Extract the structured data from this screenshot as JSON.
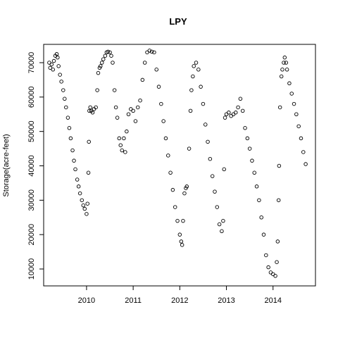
{
  "chart_data": {
    "type": "scatter",
    "title": "LPY",
    "y_label": "Storage(acre-feet)",
    "xlim": [
      2009.08,
      2014.91
    ],
    "xticks": [
      2010,
      2011,
      2012,
      2013,
      2014
    ],
    "ylim": [
      5085,
      75325
    ],
    "yticks": [
      10000,
      20000,
      30000,
      40000,
      50000,
      60000,
      70000
    ],
    "color": "#000000",
    "x": [
      2009.2,
      2009.22,
      2009.25,
      2009.28,
      2009.3,
      2009.33,
      2009.36,
      2009.38,
      2009.4,
      2009.43,
      2009.46,
      2009.5,
      2009.53,
      2009.56,
      2009.6,
      2009.63,
      2009.66,
      2009.7,
      2009.73,
      2009.76,
      2009.8,
      2009.83,
      2009.86,
      2009.9,
      2009.93,
      2009.96,
      2010.0,
      2010.02,
      2010.04,
      2010.05,
      2010.06,
      2010.08,
      2010.1,
      2010.13,
      2010.16,
      2010.2,
      2010.23,
      2010.25,
      2010.28,
      2010.3,
      2010.33,
      2010.36,
      2010.4,
      2010.43,
      2010.46,
      2010.5,
      2010.53,
      2010.56,
      2010.6,
      2010.63,
      2010.66,
      2010.7,
      2010.73,
      2010.76,
      2010.8,
      2010.83,
      2010.86,
      2010.9,
      2010.95,
      2011.0,
      2011.05,
      2011.1,
      2011.15,
      2011.2,
      2011.25,
      2011.3,
      2011.35,
      2011.4,
      2011.45,
      2011.5,
      2011.55,
      2011.6,
      2011.65,
      2011.7,
      2011.75,
      2011.8,
      2011.85,
      2011.9,
      2011.95,
      2012.0,
      2012.03,
      2012.05,
      2012.07,
      2012.1,
      2012.13,
      2012.15,
      2012.2,
      2012.23,
      2012.25,
      2012.28,
      2012.3,
      2012.35,
      2012.4,
      2012.45,
      2012.5,
      2012.55,
      2012.6,
      2012.65,
      2012.7,
      2012.75,
      2012.8,
      2012.85,
      2012.9,
      2012.93,
      2012.95,
      2012.97,
      2013.0,
      2013.05,
      2013.1,
      2013.15,
      2013.2,
      2013.25,
      2013.3,
      2013.35,
      2013.4,
      2013.45,
      2013.5,
      2013.55,
      2013.6,
      2013.65,
      2013.7,
      2013.75,
      2013.8,
      2013.85,
      2013.9,
      2013.95,
      2014.0,
      2014.05,
      2014.08,
      2014.1,
      2014.12,
      2014.13,
      2014.15,
      2014.18,
      2014.2,
      2014.23,
      2014.25,
      2014.28,
      2014.3,
      2014.35,
      2014.4,
      2014.45,
      2014.5,
      2014.55,
      2014.6,
      2014.65,
      2014.7
    ],
    "values": [
      70000,
      68500,
      69500,
      68000,
      70500,
      72000,
      72500,
      71500,
      69000,
      66500,
      64500,
      62000,
      59500,
      57000,
      54000,
      51000,
      48000,
      44500,
      41500,
      39000,
      36000,
      34000,
      32000,
      30000,
      28500,
      27500,
      26000,
      29000,
      38000,
      47000,
      56000,
      57000,
      56000,
      55500,
      56500,
      57000,
      62000,
      67000,
      68500,
      69000,
      70000,
      71000,
      72000,
      73000,
      73200,
      73000,
      72000,
      70000,
      62000,
      57000,
      54000,
      48000,
      46000,
      44500,
      48000,
      44000,
      50000,
      55000,
      56500,
      56000,
      53000,
      57000,
      59000,
      65000,
      70000,
      73000,
      73500,
      73200,
      73000,
      68000,
      63000,
      58000,
      53000,
      48000,
      43000,
      38000,
      33000,
      28000,
      24000,
      20000,
      18000,
      17000,
      24000,
      32000,
      33500,
      34000,
      45000,
      56000,
      62000,
      66000,
      69000,
      70000,
      68000,
      63000,
      58000,
      52000,
      47000,
      42000,
      37000,
      32500,
      28000,
      23000,
      21000,
      24000,
      39000,
      54000,
      55000,
      55500,
      54500,
      55000,
      55500,
      57000,
      59500,
      56000,
      51000,
      48000,
      45000,
      41500,
      38000,
      34000,
      30000,
      25000,
      20000,
      14000,
      10500,
      9000,
      8500,
      8000,
      12000,
      18000,
      30000,
      40000,
      57000,
      66000,
      68000,
      70000,
      71500,
      70000,
      68000,
      64000,
      61000,
      58000,
      55000,
      51500,
      48000,
      44000,
      40500
    ]
  }
}
